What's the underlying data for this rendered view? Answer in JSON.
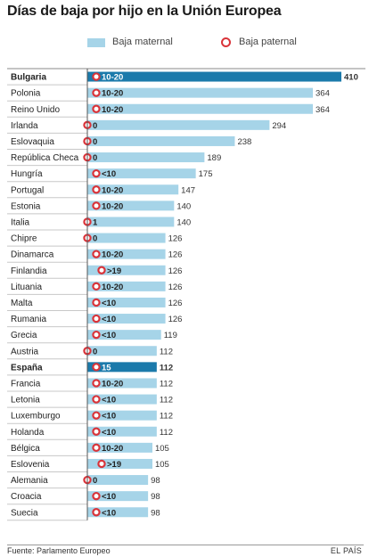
{
  "title": "Días de baja por hijo en la Unión Europea",
  "legend": {
    "maternal": "Baja maternal",
    "paternal": "Baja paternal"
  },
  "source": "Fuente: Parlamento Europeo",
  "brand": "EL PAÍS",
  "colors": {
    "maternal_bar": "#a6d4e8",
    "highlight_bar": "#1b7aab",
    "paternal_ring": "#d9343a",
    "row_line": "#c8c8c8"
  },
  "chart_data": {
    "type": "bar",
    "orientation": "horizontal",
    "categories": [
      "Bulgaria",
      "Polonia",
      "Reino Unido",
      "Irlanda",
      "Eslovaquia",
      "República Checa",
      "Hungría",
      "Portugal",
      "Estonia",
      "Italia",
      "Chipre",
      "Dinamarca",
      "Finlandia",
      "Lituania",
      "Malta",
      "Rumania",
      "Grecia",
      "Austria",
      "España",
      "Francia",
      "Letonia",
      "Luxemburgo",
      "Holanda",
      "Bélgica",
      "Eslovenia",
      "Alemania",
      "Croacia",
      "Suecia"
    ],
    "series": [
      {
        "name": "Baja maternal",
        "values": [
          410,
          364,
          364,
          294,
          238,
          189,
          175,
          147,
          140,
          140,
          126,
          126,
          126,
          126,
          126,
          126,
          119,
          112,
          112,
          112,
          112,
          112,
          112,
          105,
          105,
          98,
          98,
          98
        ]
      },
      {
        "name": "Baja paternal",
        "labels": [
          "10-20",
          "10-20",
          "10-20",
          "0",
          "0",
          "0",
          "<10",
          "10-20",
          "10-20",
          "1",
          "0",
          "10-20",
          ">19",
          "10-20",
          "<10",
          "<10",
          "<10",
          "0",
          "15",
          "10-20",
          "<10",
          "<10",
          "<10",
          "10-20",
          ">19",
          "0",
          "<10",
          "<10"
        ]
      }
    ],
    "highlighted": [
      "Bulgaria",
      "España"
    ],
    "xlim": [
      0,
      410
    ],
    "grid": false,
    "legend_position": "top"
  }
}
